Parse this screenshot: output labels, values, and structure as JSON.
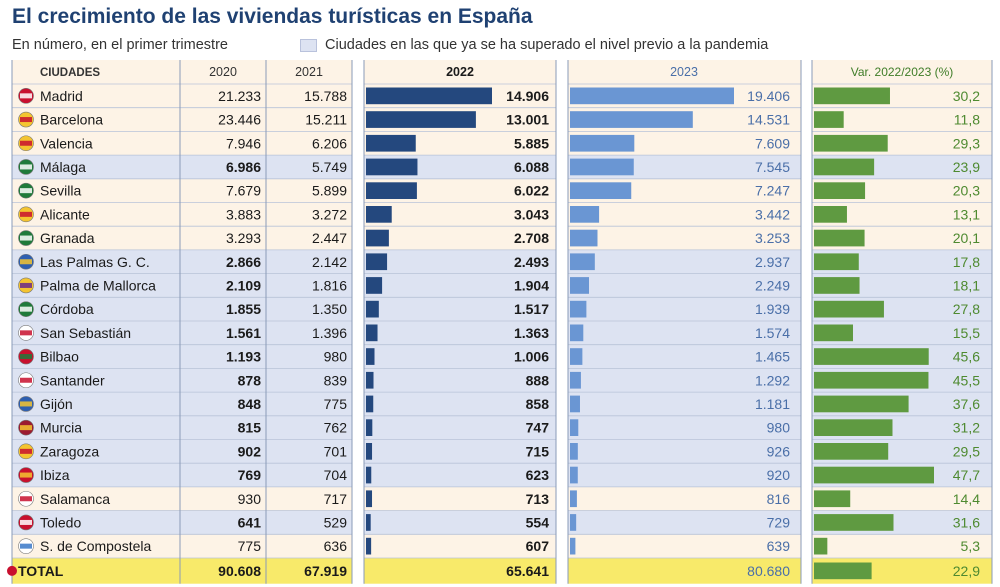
{
  "title": "El crecimiento de las viviendas turísticas en España",
  "subtitle": "En número, en el primer trimestre",
  "legend_label": "Ciudades en las que ya se ha superado el nivel previo a la pandemia",
  "colors": {
    "panel_bg": "#fdf3e6",
    "highlight_bg": "#dde3f2",
    "total_bg": "#f8ea6a",
    "bar_2022": "#24487e",
    "bar_2023": "#6a96d3",
    "bar_var": "#5f9a41",
    "text_2023": "#4a6fa8",
    "text_var": "#4e8a30",
    "header_2023": "#4a6fa8",
    "header_var": "#3f7d28"
  },
  "chart_data": {
    "type": "table",
    "columns": [
      "CIUDADES",
      "2020",
      "2021",
      "2022",
      "2023",
      "Var. 2022/2023 (%)"
    ],
    "rows": [
      {
        "city": "Madrid",
        "v2020": "21.233",
        "v2021": "15.788",
        "v2022": "14.906",
        "v2023": "19.406",
        "var": "30,2",
        "n2022": 14906,
        "n2023": 19406,
        "nvar": 30.2,
        "highlight": false,
        "bold2020": false,
        "flag": "madrid-flag-icon"
      },
      {
        "city": "Barcelona",
        "v2020": "23.446",
        "v2021": "15.211",
        "v2022": "13.001",
        "v2023": "14.531",
        "var": "11,8",
        "n2022": 13001,
        "n2023": 14531,
        "nvar": 11.8,
        "highlight": false,
        "bold2020": false,
        "flag": "barcelona-flag-icon"
      },
      {
        "city": "Valencia",
        "v2020": "7.946",
        "v2021": "6.206",
        "v2022": "5.885",
        "v2023": "7.609",
        "var": "29,3",
        "n2022": 5885,
        "n2023": 7609,
        "nvar": 29.3,
        "highlight": false,
        "bold2020": false,
        "flag": "valencia-flag-icon"
      },
      {
        "city": "Málaga",
        "v2020": "6.986",
        "v2021": "5.749",
        "v2022": "6.088",
        "v2023": "7.545",
        "var": "23,9",
        "n2022": 6088,
        "n2023": 7545,
        "nvar": 23.9,
        "highlight": true,
        "bold2020": true,
        "flag": "malaga-flag-icon"
      },
      {
        "city": "Sevilla",
        "v2020": "7.679",
        "v2021": "5.899",
        "v2022": "6.022",
        "v2023": "7.247",
        "var": "20,3",
        "n2022": 6022,
        "n2023": 7247,
        "nvar": 20.3,
        "highlight": false,
        "bold2020": false,
        "flag": "sevilla-flag-icon"
      },
      {
        "city": "Alicante",
        "v2020": "3.883",
        "v2021": "3.272",
        "v2022": "3.043",
        "v2023": "3.442",
        "var": "13,1",
        "n2022": 3043,
        "n2023": 3442,
        "nvar": 13.1,
        "highlight": false,
        "bold2020": false,
        "flag": "alicante-flag-icon"
      },
      {
        "city": "Granada",
        "v2020": "3.293",
        "v2021": "2.447",
        "v2022": "2.708",
        "v2023": "3.253",
        "var": "20,1",
        "n2022": 2708,
        "n2023": 3253,
        "nvar": 20.1,
        "highlight": false,
        "bold2020": false,
        "flag": "granada-flag-icon"
      },
      {
        "city": "Las Palmas G. C.",
        "v2020": "2.866",
        "v2021": "2.142",
        "v2022": "2.493",
        "v2023": "2.937",
        "var": "17,8",
        "n2022": 2493,
        "n2023": 2937,
        "nvar": 17.8,
        "highlight": true,
        "bold2020": true,
        "flag": "las-palmas-flag-icon"
      },
      {
        "city": "Palma de Mallorca",
        "v2020": "2.109",
        "v2021": "1.816",
        "v2022": "1.904",
        "v2023": "2.249",
        "var": "18,1",
        "n2022": 1904,
        "n2023": 2249,
        "nvar": 18.1,
        "highlight": true,
        "bold2020": true,
        "flag": "palma-flag-icon"
      },
      {
        "city": "Córdoba",
        "v2020": "1.855",
        "v2021": "1.350",
        "v2022": "1.517",
        "v2023": "1.939",
        "var": "27,8",
        "n2022": 1517,
        "n2023": 1939,
        "nvar": 27.8,
        "highlight": true,
        "bold2020": true,
        "flag": "cordoba-flag-icon"
      },
      {
        "city": "San Sebastián",
        "v2020": "1.561",
        "v2021": "1.396",
        "v2022": "1.363",
        "v2023": "1.574",
        "var": "15,5",
        "n2022": 1363,
        "n2023": 1574,
        "nvar": 15.5,
        "highlight": true,
        "bold2020": true,
        "flag": "san-sebastian-flag-icon"
      },
      {
        "city": "Bilbao",
        "v2020": "1.193",
        "v2021": "980",
        "v2022": "1.006",
        "v2023": "1.465",
        "var": "45,6",
        "n2022": 1006,
        "n2023": 1465,
        "nvar": 45.6,
        "highlight": true,
        "bold2020": true,
        "flag": "bilbao-flag-icon"
      },
      {
        "city": "Santander",
        "v2020": "878",
        "v2021": "839",
        "v2022": "888",
        "v2023": "1.292",
        "var": "45,5",
        "n2022": 888,
        "n2023": 1292,
        "nvar": 45.5,
        "highlight": true,
        "bold2020": true,
        "flag": "santander-flag-icon"
      },
      {
        "city": "Gijón",
        "v2020": "848",
        "v2021": "775",
        "v2022": "858",
        "v2023": "1.181",
        "var": "37,6",
        "n2022": 858,
        "n2023": 1181,
        "nvar": 37.6,
        "highlight": true,
        "bold2020": true,
        "flag": "gijon-flag-icon"
      },
      {
        "city": "Murcia",
        "v2020": "815",
        "v2021": "762",
        "v2022": "747",
        "v2023": "980",
        "var": "31,2",
        "n2022": 747,
        "n2023": 980,
        "nvar": 31.2,
        "highlight": true,
        "bold2020": true,
        "flag": "murcia-flag-icon"
      },
      {
        "city": "Zaragoza",
        "v2020": "902",
        "v2021": "701",
        "v2022": "715",
        "v2023": "926",
        "var": "29,5",
        "n2022": 715,
        "n2023": 926,
        "nvar": 29.5,
        "highlight": true,
        "bold2020": true,
        "flag": "zaragoza-flag-icon"
      },
      {
        "city": "Ibiza",
        "v2020": "769",
        "v2021": "704",
        "v2022": "623",
        "v2023": "920",
        "var": "47,7",
        "n2022": 623,
        "n2023": 920,
        "nvar": 47.7,
        "highlight": true,
        "bold2020": true,
        "flag": "ibiza-flag-icon"
      },
      {
        "city": "Salamanca",
        "v2020": "930",
        "v2021": "717",
        "v2022": "713",
        "v2023": "816",
        "var": "14,4",
        "n2022": 713,
        "n2023": 816,
        "nvar": 14.4,
        "highlight": false,
        "bold2020": false,
        "flag": "salamanca-flag-icon"
      },
      {
        "city": "Toledo",
        "v2020": "641",
        "v2021": "529",
        "v2022": "554",
        "v2023": "729",
        "var": "31,6",
        "n2022": 554,
        "n2023": 729,
        "nvar": 31.6,
        "highlight": true,
        "bold2020": true,
        "flag": "toledo-flag-icon"
      },
      {
        "city": "S. de Compostela",
        "v2020": "775",
        "v2021": "636",
        "v2022": "607",
        "v2023": "639",
        "var": "5,3",
        "n2022": 607,
        "n2023": 639,
        "nvar": 5.3,
        "highlight": false,
        "bold2020": false,
        "flag": "santiago-flag-icon"
      }
    ],
    "total": {
      "city": "TOTAL",
      "v2020": "90.608",
      "v2021": "67.919",
      "v2022": "65.641",
      "v2023": "80.680",
      "var": "22,9",
      "n2022": 65641,
      "n2023": 80680,
      "nvar": 22.9
    },
    "scales": {
      "bar_2022_max": 14906,
      "bar_2023_max": 19406,
      "bar_var_max": 47.7
    }
  }
}
